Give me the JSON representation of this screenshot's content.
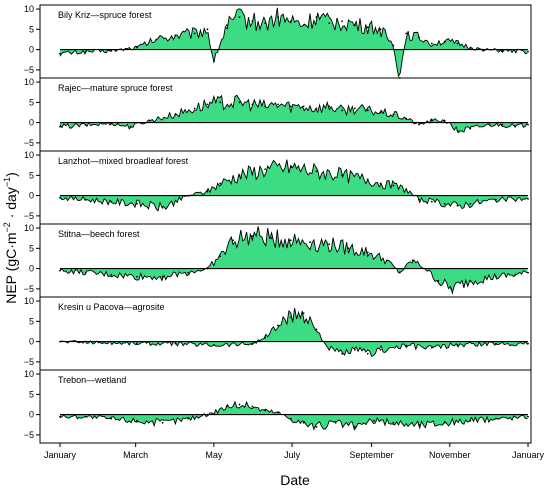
{
  "chart_data": {
    "type": "area",
    "xlabel": "Date",
    "ylabel_parts": [
      "NEP (gC",
      "·",
      "m",
      "−2",
      " · day",
      "−1",
      ")"
    ],
    "x_ticks": [
      "January",
      "March",
      "May",
      "July",
      "September",
      "November",
      "January"
    ],
    "y_ticks": [
      10,
      5,
      0,
      -5
    ],
    "ylim": [
      -7,
      11
    ],
    "x_unit": "day of year",
    "x_tick_days": [
      0,
      59,
      120,
      181,
      243,
      304,
      365
    ],
    "fill_color": "#3ddc84",
    "line_color": "#000000",
    "panels": [
      {
        "name": "Bily Kriz—spruce forest",
        "x": [
          0,
          20,
          40,
          60,
          75,
          90,
          105,
          115,
          120,
          130,
          140,
          150,
          160,
          170,
          180,
          190,
          200,
          210,
          220,
          230,
          240,
          250,
          260,
          265,
          270,
          280,
          290,
          300,
          310,
          320,
          330,
          345,
          365
        ],
        "y": [
          -1,
          -0.5,
          -0.3,
          0.5,
          2.5,
          3.5,
          4,
          5,
          -3,
          6,
          8,
          7,
          6.5,
          8,
          7,
          6,
          8,
          6.5,
          7,
          6,
          5.5,
          5,
          1,
          -7,
          4,
          3,
          1.5,
          2,
          1.5,
          0.5,
          0,
          -0.3,
          -0.5
        ]
      },
      {
        "name": "Rajec—mature spruce forest",
        "x": [
          0,
          20,
          40,
          55,
          70,
          90,
          105,
          115,
          125,
          140,
          150,
          160,
          170,
          180,
          190,
          200,
          210,
          220,
          230,
          240,
          250,
          260,
          270,
          280,
          290,
          300,
          310,
          320,
          335,
          345,
          355,
          365
        ],
        "y": [
          -1,
          -0.6,
          -0.2,
          -1,
          0.5,
          2,
          3.5,
          4.5,
          5,
          5,
          4.5,
          4,
          4.5,
          4,
          4,
          3.5,
          4,
          3,
          3.5,
          3,
          2.5,
          2,
          1,
          -0.5,
          0.5,
          0.5,
          -2,
          -1.5,
          -0.5,
          -0.5,
          -1,
          -0.5
        ]
      },
      {
        "name": "Lanzhot—mixed broadleaf forest",
        "x": [
          0,
          20,
          40,
          60,
          80,
          100,
          115,
          125,
          140,
          160,
          180,
          200,
          220,
          240,
          250,
          260,
          270,
          280,
          290,
          300,
          310,
          320,
          340,
          365
        ],
        "y": [
          -0.5,
          -1,
          -1.5,
          -2,
          -3,
          0,
          1,
          3,
          5,
          6.5,
          7,
          6,
          5,
          4,
          3,
          2.5,
          1.5,
          -1,
          -1.5,
          -2,
          -2.5,
          -2,
          -1,
          -0.8
        ]
      },
      {
        "name": "Stitna—beech forest",
        "x": [
          0,
          20,
          40,
          60,
          80,
          100,
          115,
          125,
          135,
          150,
          165,
          180,
          195,
          210,
          225,
          240,
          255,
          265,
          275,
          285,
          295,
          305,
          320,
          340,
          355,
          365
        ],
        "y": [
          -0.5,
          -1,
          -1.5,
          -2,
          -2,
          -1,
          0,
          3,
          7,
          8,
          7.5,
          7,
          6.5,
          6,
          5,
          4,
          2,
          -1,
          2,
          0,
          -3,
          -5,
          -3,
          -2,
          -1.5,
          -1
        ]
      },
      {
        "name": "Kresin u Pacova—agrosite",
        "x": [
          0,
          30,
          60,
          90,
          120,
          150,
          160,
          170,
          180,
          190,
          200,
          210,
          220,
          230,
          240,
          250,
          270,
          290,
          310,
          340,
          365
        ],
        "y": [
          0,
          -0.2,
          -0.4,
          -0.5,
          -0.8,
          -0.5,
          1,
          4,
          6,
          7,
          3,
          -2,
          -3,
          -2,
          -3,
          -2,
          -1,
          -1.5,
          -0.8,
          -0.5,
          -0.5
        ]
      },
      {
        "name": "Trebon—wetland",
        "x": [
          0,
          20,
          40,
          60,
          80,
          100,
          115,
          130,
          140,
          150,
          160,
          170,
          180,
          190,
          200,
          215,
          230,
          245,
          260,
          280,
          300,
          320,
          340,
          365
        ],
        "y": [
          -0.5,
          -0.5,
          -1,
          -1.5,
          -2,
          -1,
          0,
          2,
          2.5,
          2,
          1,
          0.5,
          -1,
          -2,
          -3,
          -2,
          -3,
          -1.5,
          -2,
          -2.5,
          -2,
          -1.5,
          -1,
          -0.5
        ]
      }
    ]
  }
}
